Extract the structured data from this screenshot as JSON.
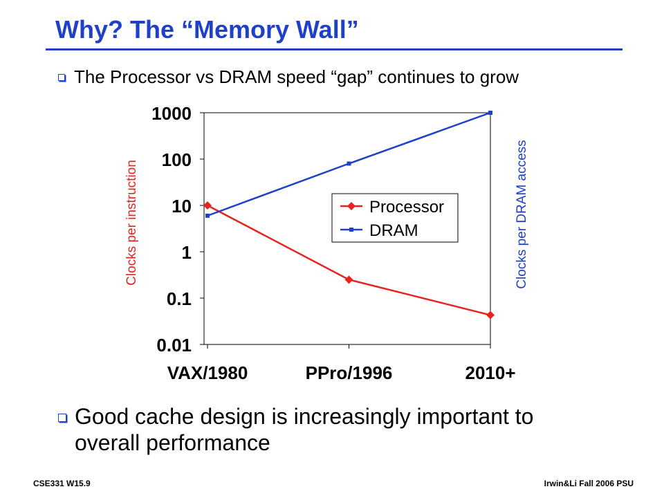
{
  "slide": {
    "title": "Why?  The “Memory Wall”",
    "bullet1": "The Processor vs DRAM speed “gap” continues to grow",
    "bullet2": "Good cache design is increasingly important to overall performance",
    "footer_left": "CSE331  W15.9",
    "footer_right": "Irwin&Li Fall 2006 PSU"
  },
  "chart_data": {
    "type": "line",
    "y_scale": "log",
    "ylim": [
      0.01,
      1000
    ],
    "ytick_labels": [
      "0.01",
      "0.1",
      "1",
      "10",
      "100",
      "1000"
    ],
    "ytick_values": [
      0.01,
      0.1,
      1,
      10,
      100,
      1000
    ],
    "categories": [
      "VAX/1980",
      "PPro/1996",
      "2010+"
    ],
    "ylabel_left": "Clocks per instruction",
    "ylabel_right": "Clocks per DRAM access",
    "legend_position": "center-right",
    "series": [
      {
        "name": "Processor",
        "values": [
          10,
          0.25,
          0.043
        ],
        "color": "#e8231e",
        "marker": "diamond"
      },
      {
        "name": "DRAM",
        "values": [
          6,
          80,
          1000
        ],
        "color": "#1f41c8",
        "marker": "square"
      }
    ]
  }
}
